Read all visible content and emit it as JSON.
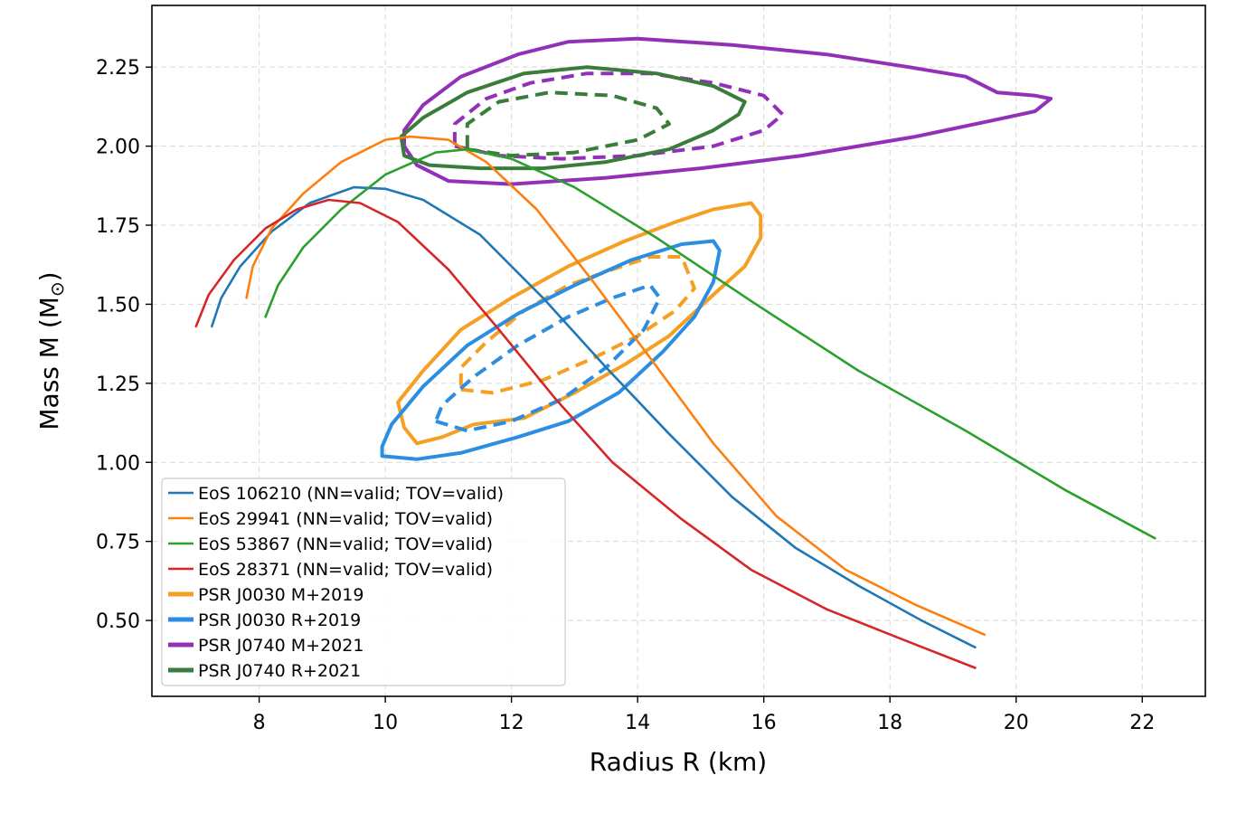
{
  "chart_data": {
    "type": "line",
    "title": "",
    "xlabel": "Radius R (km)",
    "ylabel": "Mass M (M",
    "ylabel_sub": "⊙",
    "ylabel_close": ")",
    "xlim": [
      6.3,
      23.0
    ],
    "ylim": [
      0.26,
      2.445
    ],
    "xticks": [
      8,
      10,
      12,
      14,
      16,
      18,
      20,
      22
    ],
    "yticks": [
      0.5,
      0.75,
      1.0,
      1.25,
      1.5,
      1.75,
      2.0,
      2.25
    ],
    "grid": true,
    "legend_position": "lower-left",
    "series": [
      {
        "name": "EoS 106210 (NN=valid; TOV=valid)",
        "color": "#1f77b4",
        "points": [
          [
            7.25,
            1.43
          ],
          [
            7.4,
            1.52
          ],
          [
            7.7,
            1.62
          ],
          [
            8.2,
            1.73
          ],
          [
            8.8,
            1.82
          ],
          [
            9.5,
            1.87
          ],
          [
            10.0,
            1.865
          ],
          [
            10.6,
            1.83
          ],
          [
            11.5,
            1.72
          ],
          [
            12.5,
            1.52
          ],
          [
            13.5,
            1.3
          ],
          [
            14.5,
            1.09
          ],
          [
            15.5,
            0.89
          ],
          [
            16.5,
            0.73
          ],
          [
            17.5,
            0.61
          ],
          [
            18.5,
            0.5
          ],
          [
            19.35,
            0.415
          ]
        ]
      },
      {
        "name": "EoS 29941 (NN=valid; TOV=valid)",
        "color": "#ff7f0e",
        "points": [
          [
            7.8,
            1.52
          ],
          [
            7.9,
            1.62
          ],
          [
            8.2,
            1.74
          ],
          [
            8.7,
            1.85
          ],
          [
            9.3,
            1.95
          ],
          [
            10.0,
            2.02
          ],
          [
            10.4,
            2.03
          ],
          [
            11.0,
            2.02
          ],
          [
            11.6,
            1.95
          ],
          [
            12.4,
            1.8
          ],
          [
            13.3,
            1.57
          ],
          [
            14.2,
            1.33
          ],
          [
            15.2,
            1.06
          ],
          [
            16.2,
            0.83
          ],
          [
            17.3,
            0.66
          ],
          [
            18.4,
            0.55
          ],
          [
            19.5,
            0.455
          ]
        ]
      },
      {
        "name": "EoS 53867 (NN=valid; TOV=valid)",
        "color": "#2ca02c",
        "points": [
          [
            8.1,
            1.46
          ],
          [
            8.3,
            1.56
          ],
          [
            8.7,
            1.68
          ],
          [
            9.3,
            1.8
          ],
          [
            10.0,
            1.91
          ],
          [
            10.8,
            1.98
          ],
          [
            11.3,
            1.99
          ],
          [
            12.0,
            1.96
          ],
          [
            13.0,
            1.87
          ],
          [
            14.3,
            1.71
          ],
          [
            15.8,
            1.51
          ],
          [
            17.5,
            1.29
          ],
          [
            19.2,
            1.1
          ],
          [
            20.8,
            0.91
          ],
          [
            22.2,
            0.76
          ]
        ]
      },
      {
        "name": "EoS 28371 (NN=valid; TOV=valid)",
        "color": "#d62728",
        "points": [
          [
            7.0,
            1.43
          ],
          [
            7.2,
            1.53
          ],
          [
            7.6,
            1.64
          ],
          [
            8.1,
            1.74
          ],
          [
            8.6,
            1.8
          ],
          [
            9.1,
            1.83
          ],
          [
            9.6,
            1.82
          ],
          [
            10.2,
            1.76
          ],
          [
            11.0,
            1.61
          ],
          [
            11.8,
            1.42
          ],
          [
            12.7,
            1.2
          ],
          [
            13.6,
            1.0
          ],
          [
            14.7,
            0.82
          ],
          [
            15.8,
            0.66
          ],
          [
            17.0,
            0.535
          ],
          [
            18.2,
            0.44
          ],
          [
            19.35,
            0.35
          ]
        ]
      }
    ],
    "contours": [
      {
        "name": "PSR J0030 M+2019",
        "color": "#f5a023",
        "outer": [
          [
            10.5,
            1.06
          ],
          [
            10.9,
            1.08
          ],
          [
            11.4,
            1.12
          ],
          [
            12.2,
            1.14
          ],
          [
            13.0,
            1.22
          ],
          [
            13.8,
            1.31
          ],
          [
            14.5,
            1.4
          ],
          [
            15.2,
            1.53
          ],
          [
            15.7,
            1.62
          ],
          [
            15.95,
            1.71
          ],
          [
            15.95,
            1.78
          ],
          [
            15.8,
            1.82
          ],
          [
            15.2,
            1.8
          ],
          [
            14.6,
            1.76
          ],
          [
            13.8,
            1.7
          ],
          [
            12.9,
            1.62
          ],
          [
            12.0,
            1.52
          ],
          [
            11.2,
            1.42
          ],
          [
            10.6,
            1.29
          ],
          [
            10.2,
            1.19
          ],
          [
            10.3,
            1.11
          ],
          [
            10.5,
            1.06
          ]
        ],
        "inner": [
          [
            11.2,
            1.23
          ],
          [
            11.7,
            1.22
          ],
          [
            12.5,
            1.26
          ],
          [
            13.3,
            1.33
          ],
          [
            14.0,
            1.4
          ],
          [
            14.6,
            1.48
          ],
          [
            14.9,
            1.55
          ],
          [
            14.7,
            1.65
          ],
          [
            14.2,
            1.65
          ],
          [
            13.6,
            1.61
          ],
          [
            12.9,
            1.56
          ],
          [
            12.2,
            1.48
          ],
          [
            11.6,
            1.38
          ],
          [
            11.2,
            1.3
          ],
          [
            11.2,
            1.23
          ]
        ]
      },
      {
        "name": "PSR J0030 R+2019",
        "color": "#2c8ee0",
        "outer": [
          [
            9.95,
            1.02
          ],
          [
            10.5,
            1.01
          ],
          [
            11.2,
            1.03
          ],
          [
            12.1,
            1.08
          ],
          [
            12.9,
            1.13
          ],
          [
            13.7,
            1.22
          ],
          [
            14.4,
            1.35
          ],
          [
            14.9,
            1.46
          ],
          [
            15.2,
            1.57
          ],
          [
            15.3,
            1.67
          ],
          [
            15.2,
            1.7
          ],
          [
            14.7,
            1.69
          ],
          [
            13.9,
            1.64
          ],
          [
            13.0,
            1.56
          ],
          [
            12.1,
            1.47
          ],
          [
            11.3,
            1.37
          ],
          [
            10.6,
            1.24
          ],
          [
            10.1,
            1.12
          ],
          [
            9.95,
            1.05
          ],
          [
            9.95,
            1.02
          ]
        ],
        "inner": [
          [
            10.8,
            1.13
          ],
          [
            11.3,
            1.1
          ],
          [
            12.0,
            1.13
          ],
          [
            12.8,
            1.2
          ],
          [
            13.5,
            1.3
          ],
          [
            14.1,
            1.42
          ],
          [
            14.35,
            1.52
          ],
          [
            14.2,
            1.56
          ],
          [
            13.6,
            1.52
          ],
          [
            12.9,
            1.46
          ],
          [
            12.1,
            1.37
          ],
          [
            11.4,
            1.27
          ],
          [
            10.9,
            1.18
          ],
          [
            10.8,
            1.13
          ]
        ]
      },
      {
        "name": "PSR J0740 M+2021",
        "color": "#9330b8",
        "outer": [
          [
            10.3,
            2.0
          ],
          [
            10.5,
            1.94
          ],
          [
            11.0,
            1.89
          ],
          [
            12.0,
            1.88
          ],
          [
            13.5,
            1.9
          ],
          [
            15.0,
            1.93
          ],
          [
            16.6,
            1.97
          ],
          [
            18.4,
            2.03
          ],
          [
            19.6,
            2.08
          ],
          [
            20.3,
            2.11
          ],
          [
            20.55,
            2.15
          ],
          [
            20.3,
            2.16
          ],
          [
            19.7,
            2.17
          ],
          [
            19.2,
            2.22
          ],
          [
            18.3,
            2.25
          ],
          [
            17.0,
            2.29
          ],
          [
            15.5,
            2.32
          ],
          [
            14.0,
            2.34
          ],
          [
            12.9,
            2.33
          ],
          [
            12.1,
            2.29
          ],
          [
            11.2,
            2.22
          ],
          [
            10.6,
            2.13
          ],
          [
            10.3,
            2.05
          ],
          [
            10.3,
            2.0
          ]
        ],
        "inner": [
          [
            11.1,
            2.0
          ],
          [
            11.8,
            1.97
          ],
          [
            12.8,
            1.96
          ],
          [
            14.0,
            1.97
          ],
          [
            15.2,
            2.0
          ],
          [
            16.0,
            2.05
          ],
          [
            16.3,
            2.1
          ],
          [
            16.0,
            2.16
          ],
          [
            15.2,
            2.2
          ],
          [
            14.2,
            2.23
          ],
          [
            13.2,
            2.23
          ],
          [
            12.3,
            2.2
          ],
          [
            11.6,
            2.15
          ],
          [
            11.1,
            2.07
          ],
          [
            11.1,
            2.0
          ]
        ]
      },
      {
        "name": "PSR J0740 R+2021",
        "color": "#3a7d3a",
        "outer": [
          [
            10.3,
            1.97
          ],
          [
            10.7,
            1.94
          ],
          [
            11.5,
            1.93
          ],
          [
            12.5,
            1.93
          ],
          [
            13.5,
            1.95
          ],
          [
            14.5,
            1.99
          ],
          [
            15.2,
            2.05
          ],
          [
            15.6,
            2.1
          ],
          [
            15.7,
            2.14
          ],
          [
            15.2,
            2.19
          ],
          [
            14.3,
            2.23
          ],
          [
            13.2,
            2.25
          ],
          [
            12.2,
            2.23
          ],
          [
            11.3,
            2.17
          ],
          [
            10.6,
            2.09
          ],
          [
            10.25,
            2.03
          ],
          [
            10.3,
            1.97
          ]
        ],
        "inner": [
          [
            11.3,
            1.99
          ],
          [
            12.0,
            1.97
          ],
          [
            13.0,
            1.98
          ],
          [
            14.0,
            2.02
          ],
          [
            14.5,
            2.07
          ],
          [
            14.3,
            2.12
          ],
          [
            13.6,
            2.16
          ],
          [
            12.6,
            2.17
          ],
          [
            11.8,
            2.14
          ],
          [
            11.3,
            2.07
          ],
          [
            11.3,
            1.99
          ]
        ]
      }
    ]
  }
}
